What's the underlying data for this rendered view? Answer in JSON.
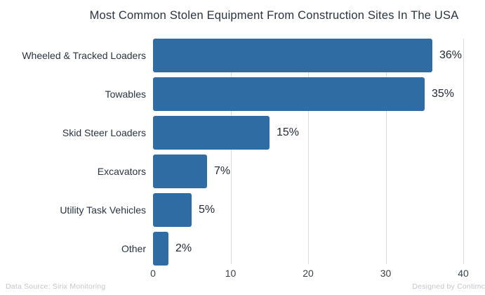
{
  "title": "Most Common Stolen Equipment From Construction Sites In The USA",
  "footer": {
    "left": "Data Source: Sirix Monitoring",
    "right": "Designed by Contimc"
  },
  "chart_data": {
    "type": "bar",
    "orientation": "horizontal",
    "title": "Most Common Stolen Equipment From Construction Sites In The USA",
    "categories": [
      "Wheeled & Tracked Loaders",
      "Towables",
      "Skid Steer Loaders",
      "Excavators",
      "Utility Task Vehicles",
      "Other"
    ],
    "values": [
      36,
      35,
      15,
      7,
      5,
      2
    ],
    "value_labels": [
      "36%",
      "35%",
      "15%",
      "7%",
      "5%",
      "2%"
    ],
    "xlabel": "",
    "ylabel": "",
    "xlim": [
      0,
      40
    ],
    "xticks": [
      0,
      10,
      20,
      30,
      40
    ],
    "grid": "vertical-light",
    "legend": "none",
    "colors": {
      "bar": "#2e6ca3",
      "title": "#2a3440",
      "category_label": "#2a3440",
      "value_label": "#1f2730",
      "tick_label": "#3a4149",
      "gridline": "#d9dce0",
      "footer": "#c2c7cd",
      "background": "#ffffff"
    }
  }
}
